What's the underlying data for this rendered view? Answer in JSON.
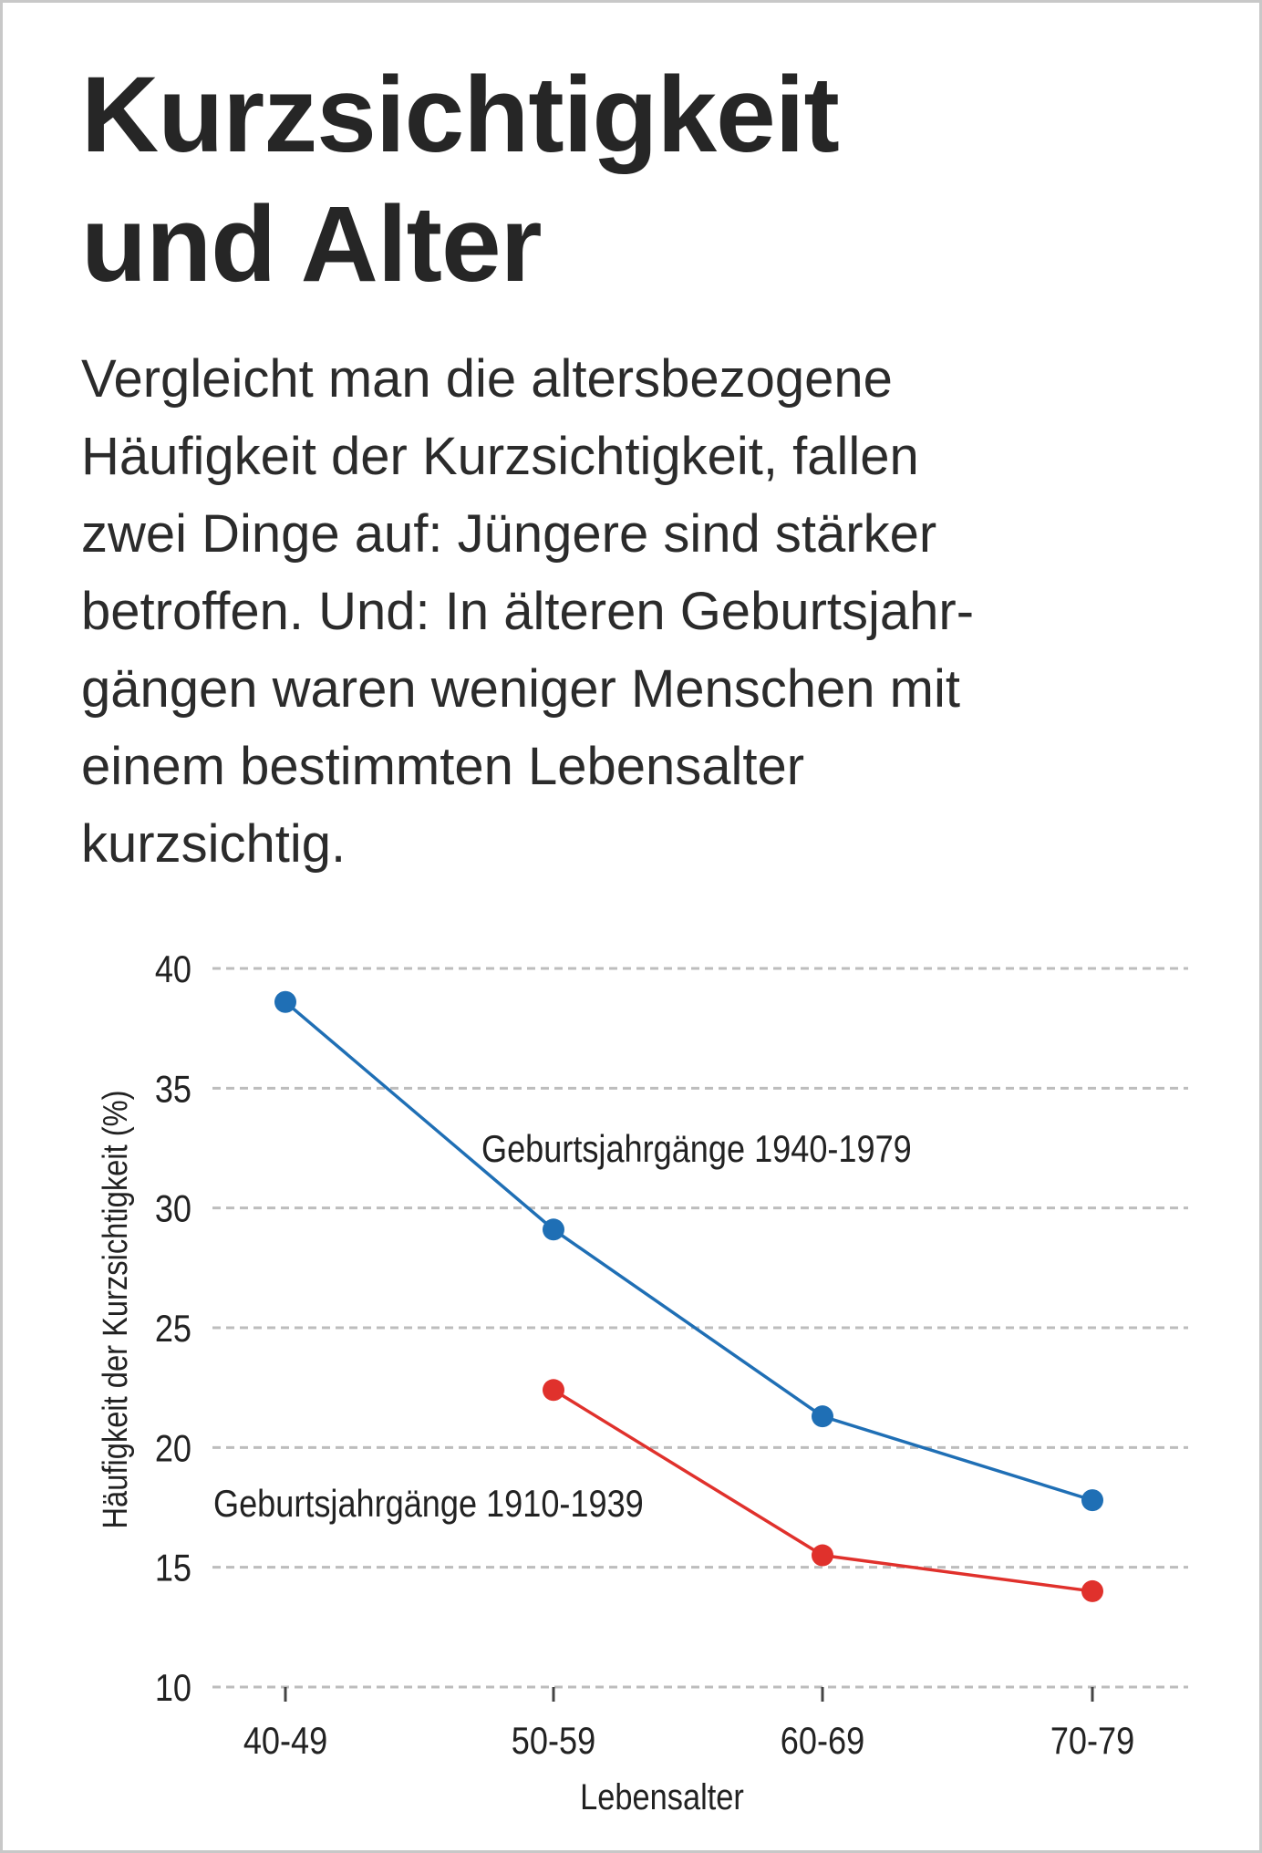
{
  "header": {
    "title_lines": [
      "Kurzsichtigkeit",
      "und Alter"
    ]
  },
  "description": {
    "lines": [
      "Vergleicht man die altersbezogene",
      "Häufigkeit der Kurzsichtigkeit, fallen",
      "zwei Dinge auf: Jüngere sind stärker",
      "betroffen. Und: In älteren Geburtsjahr-",
      "gängen waren weniger Menschen mit",
      "einem bestimmten Lebensalter",
      "kurzsichtig."
    ]
  },
  "colors": {
    "blue": "#1f6fb5",
    "red": "#e0312c",
    "grid": "#bdbdbd",
    "text": "#222222"
  },
  "chart_data": {
    "type": "line",
    "title": "",
    "categories": [
      "40-49",
      "50-59",
      "60-69",
      "70-79"
    ],
    "xlabel": "Lebensalter",
    "ylabel": "Häufigkeit der Kurzsichtigkeit (%)",
    "ylim": [
      10,
      40
    ],
    "yticks": [
      10,
      15,
      20,
      25,
      30,
      35,
      40
    ],
    "grid": true,
    "series": [
      {
        "name": "Geburtsjahrgänge 1940-1979",
        "color": "#1f6fb5",
        "values": [
          38.6,
          29.1,
          21.3,
          17.8
        ]
      },
      {
        "name": "Geburtsjahrgänge 1910-1939",
        "color": "#e0312c",
        "values": [
          null,
          22.4,
          15.5,
          14.0
        ]
      }
    ]
  }
}
